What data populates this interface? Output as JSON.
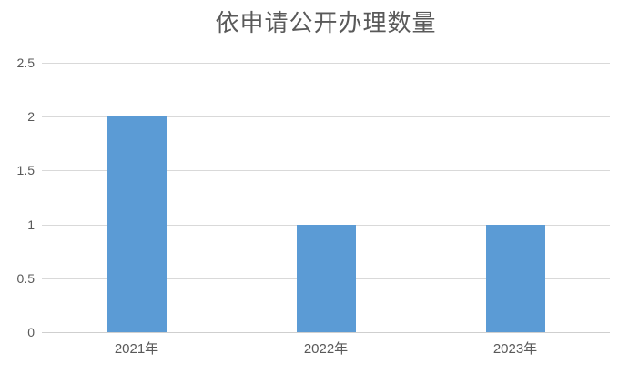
{
  "chart_data": {
    "type": "bar",
    "title": "依申请公开办理数量",
    "categories": [
      "2021年",
      "2022年",
      "2023年"
    ],
    "values": [
      2,
      1,
      1
    ],
    "xlabel": "",
    "ylabel": "",
    "ylim": [
      0,
      2.5
    ],
    "yticks": [
      "0",
      "0.5",
      "1",
      "1.5",
      "2",
      "2.5"
    ],
    "grid": true,
    "legend": "none",
    "colors": {
      "bar": "#5b9bd5",
      "gridline": "#d9d9d9",
      "axis_line": "#cfcfcf",
      "text": "#595959",
      "background": "#ffffff"
    }
  }
}
